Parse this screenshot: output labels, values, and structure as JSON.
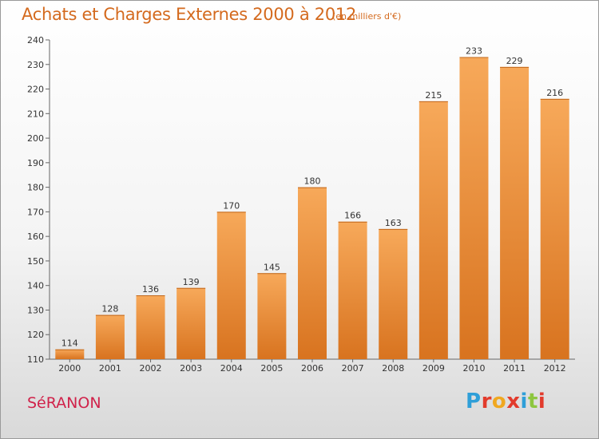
{
  "header": {
    "title": "Achats et Charges Externes 2000 à 2012",
    "unit": "(en milliers d'€)"
  },
  "footer": {
    "commune": "SéRANON",
    "brand": "Proxiti",
    "brand_colors": [
      "#2f9fd8",
      "#e23b2c",
      "#f0a820",
      "#e23b2c",
      "#2f9fd8",
      "#8dc63f",
      "#e23b2c"
    ]
  },
  "colors": {
    "bar_top": "#f7a95a",
    "bar_bottom": "#d8731f",
    "title": "#d46a1e",
    "commune": "#d0224a"
  },
  "chart_data": {
    "type": "bar",
    "categories": [
      "2000",
      "2001",
      "2002",
      "2003",
      "2004",
      "2005",
      "2006",
      "2007",
      "2008",
      "2009",
      "2010",
      "2011",
      "2012"
    ],
    "values": [
      114,
      128,
      136,
      139,
      170,
      145,
      180,
      166,
      163,
      215,
      233,
      229,
      216
    ],
    "title": "Achats et Charges Externes 2000 à 2012",
    "xlabel": "",
    "ylabel": "",
    "ylim": [
      110,
      240
    ],
    "yticks": [
      110,
      120,
      130,
      140,
      150,
      160,
      170,
      180,
      190,
      200,
      210,
      220,
      230,
      240
    ],
    "grid": false,
    "data_labels": true
  }
}
